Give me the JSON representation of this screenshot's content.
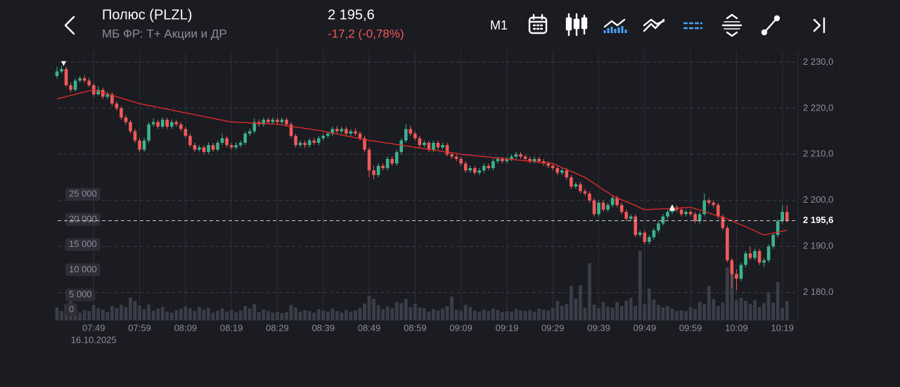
{
  "header": {
    "title": "Полюс (PLZL)",
    "subtitle": "МБ ФР: Т+ Акции и ДР",
    "price": "2 195,6",
    "change": "-17,2 (-0,78%)",
    "timeframe": "M1"
  },
  "chart_data": {
    "type": "candlestick",
    "up_color": "#3bb38c",
    "down_color": "#f05a5a",
    "ma_color": "#d92b2b",
    "volume_color": "#3b3d48",
    "categories": [
      null,
      null,
      null,
      null,
      null,
      null,
      null,
      null,
      "07:49",
      null,
      null,
      null,
      null,
      null,
      null,
      null,
      null,
      null,
      "07:59",
      null,
      null,
      null,
      null,
      null,
      null,
      null,
      null,
      null,
      "08:09",
      null,
      null,
      null,
      null,
      null,
      null,
      null,
      null,
      null,
      "08:19",
      null,
      null,
      null,
      null,
      null,
      null,
      null,
      null,
      null,
      "08:29",
      null,
      null,
      null,
      null,
      null,
      null,
      null,
      null,
      null,
      "08:39",
      null,
      null,
      null,
      null,
      null,
      null,
      null,
      null,
      null,
      "08:49",
      null,
      null,
      null,
      null,
      null,
      null,
      null,
      null,
      null,
      "08:59",
      null,
      null,
      null,
      null,
      null,
      null,
      null,
      null,
      null,
      "09:09",
      null,
      null,
      null,
      null,
      null,
      null,
      null,
      null,
      null,
      "09:19",
      null,
      null,
      null,
      null,
      null,
      null,
      null,
      null,
      null,
      "09:29",
      null,
      null,
      null,
      null,
      null,
      null,
      null,
      null,
      null,
      "09:39",
      null,
      null,
      null,
      null,
      null,
      null,
      null,
      null,
      null,
      "09:49",
      null,
      null,
      null,
      null,
      null,
      null,
      null,
      null,
      null,
      "09:59",
      null,
      null,
      null,
      null,
      null,
      null,
      null,
      null,
      null,
      "10:09",
      null,
      null,
      null,
      null,
      null,
      null,
      null,
      null,
      null,
      "10:19",
      null
    ],
    "date": "16.10.2025",
    "open": [
      2227,
      2228,
      2228.5,
      2225,
      2224,
      2226,
      2226.5,
      2226,
      2225,
      2223,
      2224,
      2222.5,
      2223,
      2221,
      2220,
      2218,
      2217,
      2215,
      2213,
      2211,
      2213,
      2216.5,
      2217,
      2216,
      2217.5,
      2216,
      2217,
      2216.5,
      2215.5,
      2214,
      2212,
      2211,
      2211.5,
      2210.5,
      2212,
      2211,
      2212.5,
      2213.5,
      2212,
      2211.5,
      2212,
      2212.5,
      2214.5,
      2215,
      2217,
      2216.5,
      2217.5,
      2217,
      2217.5,
      2217,
      2217.5,
      2216.5,
      2214,
      2212,
      2212.5,
      2212,
      2213,
      2212.5,
      2213.5,
      2214,
      2214.5,
      2215.5,
      2215,
      2215.5,
      2214.5,
      2215,
      2214.5,
      2213.5,
      2211,
      2206.5,
      2205.5,
      2207.5,
      2207,
      2209,
      2208,
      2210.5,
      2213,
      2215.5,
      2214.5,
      2213.5,
      2212,
      2212.5,
      2211,
      2212.5,
      2211.5,
      2212,
      2210,
      2209.5,
      2209,
      2208,
      2206.5,
      2207,
      2206,
      2206.5,
      2207.5,
      2207,
      2208.5,
      2209,
      2208.5,
      2209,
      2209.5,
      2210,
      2209.5,
      2209,
      2208.5,
      2209,
      2208.5,
      2208,
      2207.5,
      2207,
      2206,
      2206.5,
      2205,
      2203,
      2203.5,
      2202,
      2201.5,
      2200,
      2197,
      2199.5,
      2198,
      2199,
      2200.5,
      2199,
      2197.5,
      2196,
      2196.5,
      2192.5,
      2193,
      2191,
      2192,
      2193.5,
      2195,
      2196.5,
      2197.5,
      2198.5,
      2198,
      2197,
      2197.5,
      2197,
      2195.5,
      2197,
      2200,
      2199.5,
      2199,
      2196.5,
      2194,
      2187,
      2184,
      2183,
      2186,
      2188.5,
      2187.5,
      2189,
      2186.5,
      2187,
      2190,
      2192.5,
      2195.5,
      2197.5
    ],
    "high": [
      2229,
      2229.2,
      2229,
      2225.6,
      2226.5,
      2227,
      2227.2,
      2226.6,
      2225.5,
      2224.8,
      2224.5,
      2223.6,
      2223.5,
      2221.5,
      2220.5,
      2218.6,
      2217.5,
      2215.5,
      2213.6,
      2213.6,
      2217,
      2217.8,
      2217.5,
      2218,
      2218,
      2217.6,
      2217.5,
      2217,
      2216,
      2214.5,
      2212.5,
      2212,
      2212,
      2212.6,
      2212.5,
      2213,
      2214.5,
      2214,
      2212.5,
      2212.6,
      2213,
      2215,
      2215.6,
      2217.8,
      2217.6,
      2218,
      2218,
      2218,
      2218,
      2218,
      2218,
      2217,
      2214.5,
      2213,
      2213,
      2213.5,
      2213.6,
      2214,
      2214.5,
      2215,
      2216,
      2216.2,
      2216,
      2216,
      2215.5,
      2215.6,
      2215,
      2214,
      2211.5,
      2207.5,
      2208,
      2208,
      2209.5,
      2209.6,
      2211,
      2213.5,
      2216.5,
      2216.2,
      2215,
      2214,
      2213,
      2213,
      2213,
      2213,
      2212.6,
      2212.5,
      2210.5,
      2210,
      2209.5,
      2208.5,
      2207.5,
      2207.5,
      2207,
      2208,
      2208,
      2209,
      2209.5,
      2209.5,
      2209.5,
      2210,
      2210.5,
      2210.5,
      2210,
      2209.5,
      2209.5,
      2209.5,
      2209,
      2208.5,
      2208,
      2207.5,
      2207,
      2207,
      2205.5,
      2204,
      2204,
      2202.5,
      2202,
      2200.5,
      2200,
      2200,
      2199.5,
      2201,
      2201,
      2199.5,
      2198,
      2197,
      2197,
      2193.5,
      2193.5,
      2192.5,
      2194,
      2195.5,
      2197,
      2198,
      2199,
      2199,
      2198.5,
      2198,
      2198,
      2197.5,
      2197.5,
      2201.5,
      2200.5,
      2200,
      2199.5,
      2197,
      2194.5,
      2187.5,
      2185,
      2186.5,
      2189,
      2190,
      2189.5,
      2189.5,
      2187.5,
      2190.5,
      2193,
      2196,
      2199,
      2199
    ],
    "low": [
      2226.5,
      2227.6,
      2224.6,
      2223.4,
      2223.6,
      2225.6,
      2225.5,
      2224.6,
      2222.5,
      2222.8,
      2222,
      2222,
      2220.5,
      2219.5,
      2217.5,
      2216.4,
      2214.5,
      2212.5,
      2210.4,
      2210.5,
      2212.5,
      2216,
      2215.5,
      2215.6,
      2215.5,
      2215.5,
      2216,
      2215,
      2213.5,
      2211.5,
      2210.5,
      2210.6,
      2210,
      2210,
      2210.5,
      2210.6,
      2212,
      2211.5,
      2211,
      2211,
      2211.5,
      2212,
      2214,
      2214.5,
      2216,
      2216,
      2216.5,
      2216.5,
      2216.5,
      2216.5,
      2216,
      2213.5,
      2211.5,
      2211.5,
      2211.4,
      2211.5,
      2212,
      2212,
      2213,
      2213.5,
      2214,
      2214.5,
      2214.5,
      2214,
      2214,
      2214,
      2213,
      2210.5,
      2205,
      2204.6,
      2205,
      2206.5,
      2206.5,
      2207.5,
      2207.5,
      2210,
      2212.5,
      2214,
      2213,
      2211.5,
      2211.5,
      2210.5,
      2210.5,
      2211,
      2211,
      2209.5,
      2209,
      2208.5,
      2207.5,
      2206,
      2206,
      2205.5,
      2205.5,
      2206,
      2206.5,
      2206.5,
      2208,
      2208,
      2208,
      2208.5,
      2209,
      2209,
      2208.5,
      2208,
      2208,
      2208,
      2207.5,
      2207,
      2206.5,
      2205.5,
      2205.5,
      2204.5,
      2202.5,
      2202.5,
      2201.5,
      2201,
      2199.5,
      2196.5,
      2196.5,
      2197.5,
      2197.5,
      2198.5,
      2198.5,
      2197,
      2195.5,
      2195.5,
      2192,
      2192,
      2190.5,
      2190.5,
      2191.5,
      2193,
      2194.5,
      2196,
      2197,
      2197.5,
      2196.5,
      2196.5,
      2196.5,
      2195,
      2195,
      2196.5,
      2199,
      2198.5,
      2196,
      2193.5,
      2186.5,
      2181,
      2180.5,
      2182.5,
      2185.5,
      2187,
      2187,
      2186,
      2185.5,
      2186.5,
      2189.5,
      2192,
      2195,
      2195.2
    ],
    "close": [
      2228,
      2228.5,
      2225,
      2224,
      2226,
      2226.5,
      2226,
      2225,
      2223,
      2224,
      2222.5,
      2223,
      2221,
      2220,
      2218,
      2217,
      2215,
      2213,
      2211,
      2213,
      2216.5,
      2217,
      2216,
      2217.5,
      2216,
      2217,
      2216.5,
      2215.5,
      2214,
      2212,
      2211,
      2211.5,
      2210.5,
      2212,
      2211,
      2212.5,
      2213.5,
      2212,
      2211.5,
      2212,
      2212.5,
      2214.5,
      2215,
      2217,
      2216.5,
      2217.5,
      2217,
      2217.5,
      2217,
      2217.5,
      2216.5,
      2214,
      2212,
      2212.5,
      2212,
      2213,
      2212.5,
      2213.5,
      2214,
      2214.5,
      2215.5,
      2215,
      2215.5,
      2214.5,
      2215,
      2214.5,
      2213.5,
      2211,
      2206.5,
      2205.5,
      2207.5,
      2207,
      2209,
      2208,
      2210.5,
      2213,
      2215.5,
      2214.5,
      2213.5,
      2212,
      2212.5,
      2211,
      2212.5,
      2211.5,
      2212,
      2210,
      2209.5,
      2209,
      2208,
      2206.5,
      2207,
      2206,
      2206.5,
      2207.5,
      2207,
      2208.5,
      2209,
      2208.5,
      2209,
      2209.5,
      2210,
      2209.5,
      2209,
      2208.5,
      2209,
      2208.5,
      2208,
      2207.5,
      2207,
      2206,
      2206.5,
      2205,
      2203,
      2203.5,
      2202,
      2201.5,
      2200,
      2197,
      2199.5,
      2198,
      2199,
      2200.5,
      2199,
      2197.5,
      2196,
      2196.5,
      2192.5,
      2193,
      2191,
      2192,
      2193.5,
      2195,
      2196.5,
      2197.5,
      2198.5,
      2198,
      2197,
      2197.5,
      2197,
      2195.5,
      2197,
      2200,
      2199.5,
      2199,
      2196.5,
      2194,
      2187,
      2184,
      2183,
      2186,
      2188.5,
      2187.5,
      2189,
      2186.5,
      2187,
      2190,
      2192.5,
      2195.5,
      2197.5,
      2195.6
    ],
    "ma": [
      2222,
      2222.3,
      2222.5,
      2222.8,
      2223,
      2223.3,
      2223.5,
      2223.8,
      2224,
      2223.7,
      2223.4,
      2223.1,
      2222.8,
      2222.5,
      2222.2,
      2221.9,
      2221.6,
      2221.3,
      2221,
      2220.8,
      2220.6,
      2220.4,
      2220.2,
      2220,
      2219.8,
      2219.6,
      2219.4,
      2219.2,
      2219,
      2218.8,
      2218.6,
      2218.4,
      2218.2,
      2218,
      2217.8,
      2217.6,
      2217.4,
      2217.2,
      2217,
      2217,
      2216.9,
      2216.9,
      2216.8,
      2216.8,
      2216.7,
      2216.7,
      2216.6,
      2216.6,
      2216.5,
      2216.4,
      2216.2,
      2216.1,
      2215.9,
      2215.8,
      2215.6,
      2215.5,
      2215.3,
      2215.2,
      2215,
      2214.8,
      2214.6,
      2214.4,
      2214.2,
      2214,
      2213.8,
      2213.6,
      2213.4,
      2213.2,
      2213,
      2212.9,
      2212.7,
      2212.6,
      2212.4,
      2212.3,
      2212.1,
      2212,
      2211.8,
      2211.7,
      2211.5,
      2211.4,
      2211.2,
      2211.1,
      2210.9,
      2210.8,
      2210.6,
      2210.5,
      2210.3,
      2210.2,
      2210,
      2209.9,
      2209.8,
      2209.7,
      2209.6,
      2209.5,
      2209.4,
      2209.3,
      2209.2,
      2209.1,
      2209,
      2208.9,
      2208.8,
      2208.7,
      2208.6,
      2208.5,
      2208.4,
      2208.3,
      2208.2,
      2208.1,
      2208,
      2207.6,
      2207.1,
      2206.7,
      2206.3,
      2205.9,
      2205.4,
      2205,
      2204.3,
      2203.7,
      2203,
      2202.3,
      2201.7,
      2201,
      2200.6,
      2200.1,
      2199.7,
      2199.3,
      2198.9,
      2198.4,
      2198,
      2198,
      2198.1,
      2198.1,
      2198.2,
      2198.2,
      2198.3,
      2198.3,
      2198.4,
      2198.4,
      2198.5,
      2198.2,
      2197.9,
      2197.6,
      2197.3,
      2196.9,
      2196.6,
      2196.3,
      2196,
      2195.6,
      2195.1,
      2194.7,
      2194.3,
      2193.8,
      2193.4,
      2192.9,
      2192.5,
      2192.7,
      2192.9,
      2193.1,
      2193.3,
      2193.5
    ],
    "volume": [
      2500,
      1800,
      3200,
      6000,
      2200,
      1500,
      2000,
      1800,
      3000,
      2400,
      2100,
      1600,
      2800,
      2400,
      3000,
      2600,
      4500,
      3800,
      2900,
      2200,
      3100,
      1900,
      2300,
      2600,
      1700,
      1500,
      2000,
      2200,
      2700,
      2400,
      1800,
      2600,
      2100,
      2400,
      1500,
      1900,
      2300,
      1700,
      2000,
      1600,
      1900,
      2800,
      2300,
      3200,
      1600,
      2100,
      1800,
      1500,
      1700,
      1400,
      1600,
      3000,
      2500,
      1700,
      2000,
      1800,
      1500,
      2200,
      1900,
      1700,
      2300,
      1800,
      1500,
      2000,
      1700,
      1900,
      2400,
      3300,
      4800,
      4200,
      3000,
      2200,
      2700,
      2400,
      3600,
      3400,
      4200,
      2600,
      3200,
      2500,
      2400,
      1700,
      2200,
      1900,
      2300,
      2800,
      4700,
      2100,
      1900,
      3000,
      2600,
      1900,
      1700,
      2100,
      1800,
      2300,
      2000,
      1600,
      1800,
      1700,
      2200,
      1900,
      1800,
      2000,
      1700,
      2300,
      2100,
      1900,
      2500,
      3800,
      2900,
      3200,
      6800,
      4300,
      6900,
      2500,
      11300,
      3100,
      2400,
      3600,
      2700,
      2500,
      3600,
      2800,
      3900,
      4400,
      2800,
      13800,
      3200,
      6300,
      4100,
      3000,
      2500,
      2800,
      2300,
      1800,
      2000,
      1800,
      2600,
      2200,
      3600,
      3200,
      6800,
      4200,
      2800,
      3500,
      10500,
      9600,
      4000,
      4500,
      3800,
      3200,
      4000,
      2600,
      3400,
      5500,
      3500,
      7600,
      2400,
      3800
    ],
    "ylim": [
      2174,
      2232.5
    ],
    "yticks": [
      {
        "value": 2180,
        "label": "2 180,0"
      },
      {
        "value": 2190,
        "label": "2 190,0"
      },
      {
        "value": 2200,
        "label": "2 200,0"
      },
      {
        "value": 2210,
        "label": "2 210,0"
      },
      {
        "value": 2220,
        "label": "2 220,0"
      },
      {
        "value": 2230,
        "label": "2 230,0"
      }
    ],
    "volume_lim": [
      0,
      53500
    ],
    "volume_ticks": [
      0,
      {
        "value": 5000,
        "label": "5 000"
      },
      {
        "value": 10000,
        "label": "10 000"
      },
      {
        "value": 15000,
        "label": "15 000"
      },
      {
        "value": 20000,
        "label": "20 000"
      },
      {
        "value": 25000,
        "label": "25 000"
      }
    ],
    "last_price": {
      "value": 2195.6,
      "label": "2 195,6"
    },
    "grid": true
  }
}
